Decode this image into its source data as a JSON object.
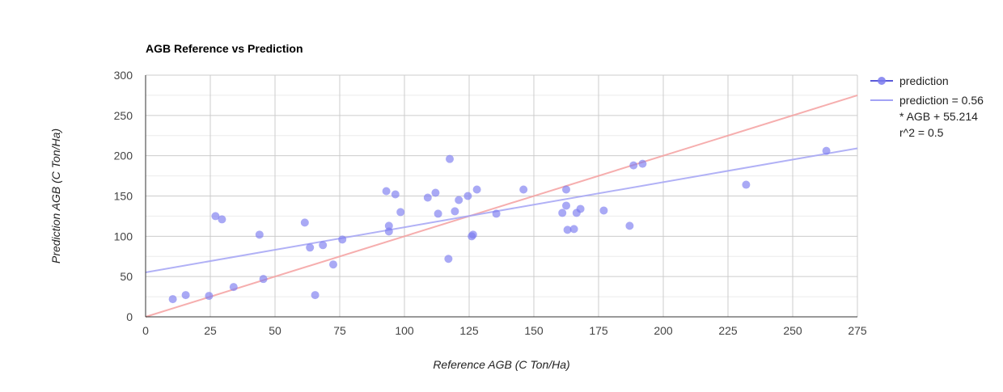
{
  "chart_data": {
    "type": "scatter",
    "title": "AGB Reference vs Prediction",
    "xlabel": "Reference AGB (C Ton/Ha)",
    "ylabel": "Prediction AGB (C Ton/Ha)",
    "xlim": [
      0,
      275
    ],
    "ylim": [
      0,
      300
    ],
    "x_ticks": [
      "0",
      "25",
      "50",
      "75",
      "100",
      "125",
      "150",
      "175",
      "200",
      "225",
      "250",
      "275"
    ],
    "y_ticks": [
      "0",
      "50",
      "100",
      "150",
      "200",
      "250",
      "300"
    ],
    "grid": true,
    "legend_position": "right",
    "series": [
      {
        "name": "prediction",
        "color": "#7b7bef",
        "points": [
          [
            10.5,
            22
          ],
          [
            15.5,
            27
          ],
          [
            24.5,
            26
          ],
          [
            27,
            125
          ],
          [
            29.5,
            121
          ],
          [
            34,
            37
          ],
          [
            44,
            102
          ],
          [
            45.5,
            47
          ],
          [
            61.5,
            117
          ],
          [
            63.5,
            86
          ],
          [
            65.5,
            27
          ],
          [
            68.5,
            89
          ],
          [
            72.5,
            65
          ],
          [
            76,
            96
          ],
          [
            93,
            156
          ],
          [
            94,
            106
          ],
          [
            94,
            113
          ],
          [
            96.5,
            152
          ],
          [
            98.5,
            130
          ],
          [
            109,
            148
          ],
          [
            112,
            154
          ],
          [
            113,
            128
          ],
          [
            117,
            72
          ],
          [
            117.5,
            196
          ],
          [
            119.5,
            131
          ],
          [
            121,
            145
          ],
          [
            124.5,
            150
          ],
          [
            126,
            100
          ],
          [
            126.5,
            102
          ],
          [
            128,
            158
          ],
          [
            135.5,
            128
          ],
          [
            146,
            158
          ],
          [
            161,
            129
          ],
          [
            162.5,
            138
          ],
          [
            162.5,
            158
          ],
          [
            163,
            108
          ],
          [
            165.5,
            109
          ],
          [
            166.5,
            129
          ],
          [
            168,
            134
          ],
          [
            177,
            132
          ],
          [
            187,
            113
          ],
          [
            188.5,
            188
          ],
          [
            192,
            190
          ],
          [
            232,
            164
          ],
          [
            263,
            206
          ]
        ]
      }
    ],
    "trendline": {
      "label_lines": [
        "prediction = 0.56",
        "* AGB + 55.214",
        "r^2 = 0.5"
      ],
      "slope": 0.56,
      "intercept": 55.214,
      "color": "#a3a3f5"
    },
    "reference_line": {
      "slope": 1,
      "intercept": 0,
      "color": "#f4a0a0"
    }
  }
}
